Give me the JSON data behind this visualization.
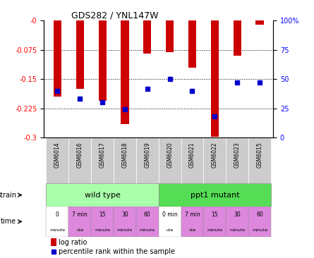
{
  "title": "GDS282 / YNL147W",
  "samples": [
    "GSM6014",
    "GSM6016",
    "GSM6017",
    "GSM6018",
    "GSM6019",
    "GSM6020",
    "GSM6021",
    "GSM6022",
    "GSM6023",
    "GSM6015"
  ],
  "log_ratio": [
    -0.195,
    -0.175,
    -0.205,
    -0.265,
    -0.085,
    -0.08,
    -0.12,
    -0.298,
    -0.09,
    -0.01
  ],
  "percentile": [
    40,
    33,
    30,
    24,
    42,
    50,
    40,
    18,
    47,
    47
  ],
  "ylim_left": [
    -0.3,
    0
  ],
  "ylim_right": [
    0,
    100
  ],
  "yticks_left": [
    0,
    -0.075,
    -0.15,
    -0.225,
    -0.3
  ],
  "ytick_labels_left": [
    "-0",
    "-0.075",
    "-0.15",
    "-0.225",
    "-0.3"
  ],
  "yticks_right": [
    0,
    25,
    50,
    75,
    100
  ],
  "ytick_labels_right": [
    "0",
    "25",
    "50",
    "75",
    "100%"
  ],
  "bar_color": "#cc0000",
  "dot_color": "#0000cc",
  "strain_labels": [
    "wild type",
    "ppt1 mutant"
  ],
  "strain_color_wt": "#aaffaa",
  "strain_color_mut": "#55dd55",
  "time_color_white": "#ffffff",
  "time_color_pink": "#dd88dd",
  "time_labels_top": [
    "0",
    "7 min",
    "15",
    "30",
    "60",
    "0 min",
    "7 min",
    "15",
    "30",
    "60"
  ],
  "time_labels_bot": [
    "minute",
    "ute",
    "minute",
    "minute",
    "minute",
    "ute",
    "ute",
    "minute",
    "minute",
    "minute"
  ],
  "time_colors": [
    "white",
    "pink",
    "pink",
    "pink",
    "pink",
    "white",
    "pink",
    "pink",
    "pink",
    "pink"
  ],
  "legend_log": "log ratio",
  "legend_pct": "percentile rank within the sample",
  "xlabel_strain": "strain",
  "xlabel_time": "time",
  "bar_width": 0.35,
  "dot_size": 5
}
